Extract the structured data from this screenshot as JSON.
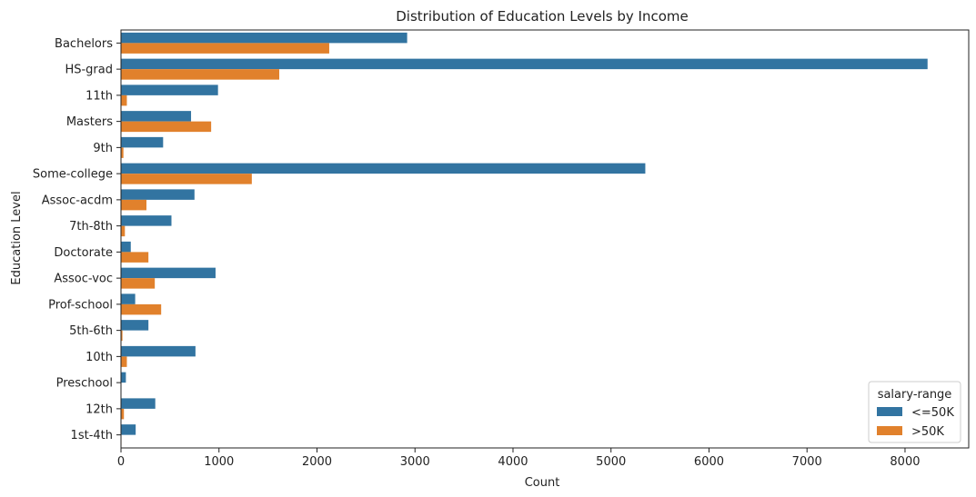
{
  "chart_data": {
    "type": "bar",
    "orientation": "horizontal",
    "title": "Distribution of Education Levels by Income",
    "xlabel": "Count",
    "ylabel": "Education Level",
    "xlim": [
      0,
      8650
    ],
    "xticks": [
      0,
      1000,
      2000,
      3000,
      4000,
      5000,
      6000,
      7000,
      8000
    ],
    "categories": [
      "Bachelors",
      "HS-grad",
      "11th",
      "Masters",
      "9th",
      "Some-college",
      "Assoc-acdm",
      "7th-8th",
      "Doctorate",
      "Assoc-voc",
      "Prof-school",
      "5th-6th",
      "10th",
      "Preschool",
      "12th",
      "1st-4th"
    ],
    "series": [
      {
        "name": "<=50K",
        "color": "#3274a1",
        "values": [
          2920,
          8230,
          990,
          715,
          430,
          5350,
          750,
          515,
          100,
          965,
          145,
          280,
          760,
          50,
          350,
          150
        ]
      },
      {
        "name": ">50K",
        "color": "#e1812c",
        "values": [
          2125,
          1615,
          60,
          920,
          25,
          1335,
          260,
          40,
          280,
          345,
          410,
          15,
          60,
          0,
          30,
          5
        ]
      }
    ],
    "legend": {
      "title": "salary-range",
      "position": "lower-right"
    },
    "grid": false
  }
}
